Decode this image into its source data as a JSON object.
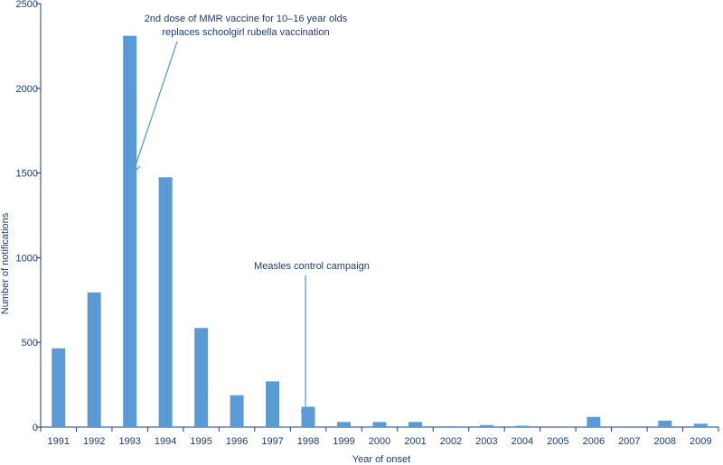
{
  "chart_data": {
    "type": "bar",
    "categories": [
      "1991",
      "1992",
      "1993",
      "1994",
      "1995",
      "1996",
      "1997",
      "1998",
      "1999",
      "2000",
      "2001",
      "2002",
      "2003",
      "2004",
      "2005",
      "2006",
      "2007",
      "2008",
      "2009"
    ],
    "values": [
      465,
      795,
      2310,
      1475,
      585,
      188,
      270,
      120,
      30,
      30,
      30,
      5,
      12,
      8,
      0,
      60,
      0,
      38,
      20
    ],
    "xlabel": "Year of onset",
    "ylabel": "Number of notifications",
    "ylim": [
      0,
      2500
    ],
    "yticks": [
      0,
      500,
      1000,
      1500,
      2000,
      2500
    ],
    "grid": false,
    "colors": {
      "bar": "#5b9bd5",
      "axis": "#1f3b6e",
      "text": "#1f3b6e"
    },
    "annotations": [
      {
        "lines": [
          "2nd dose of MMR vaccine for 10–16 year olds",
          "replaces schoolgirl rubella vaccination"
        ],
        "target_category": "1993",
        "target_value": 1550
      },
      {
        "lines": [
          "Measles control campaign"
        ],
        "target_category": "1998",
        "target_value": 130
      }
    ]
  }
}
